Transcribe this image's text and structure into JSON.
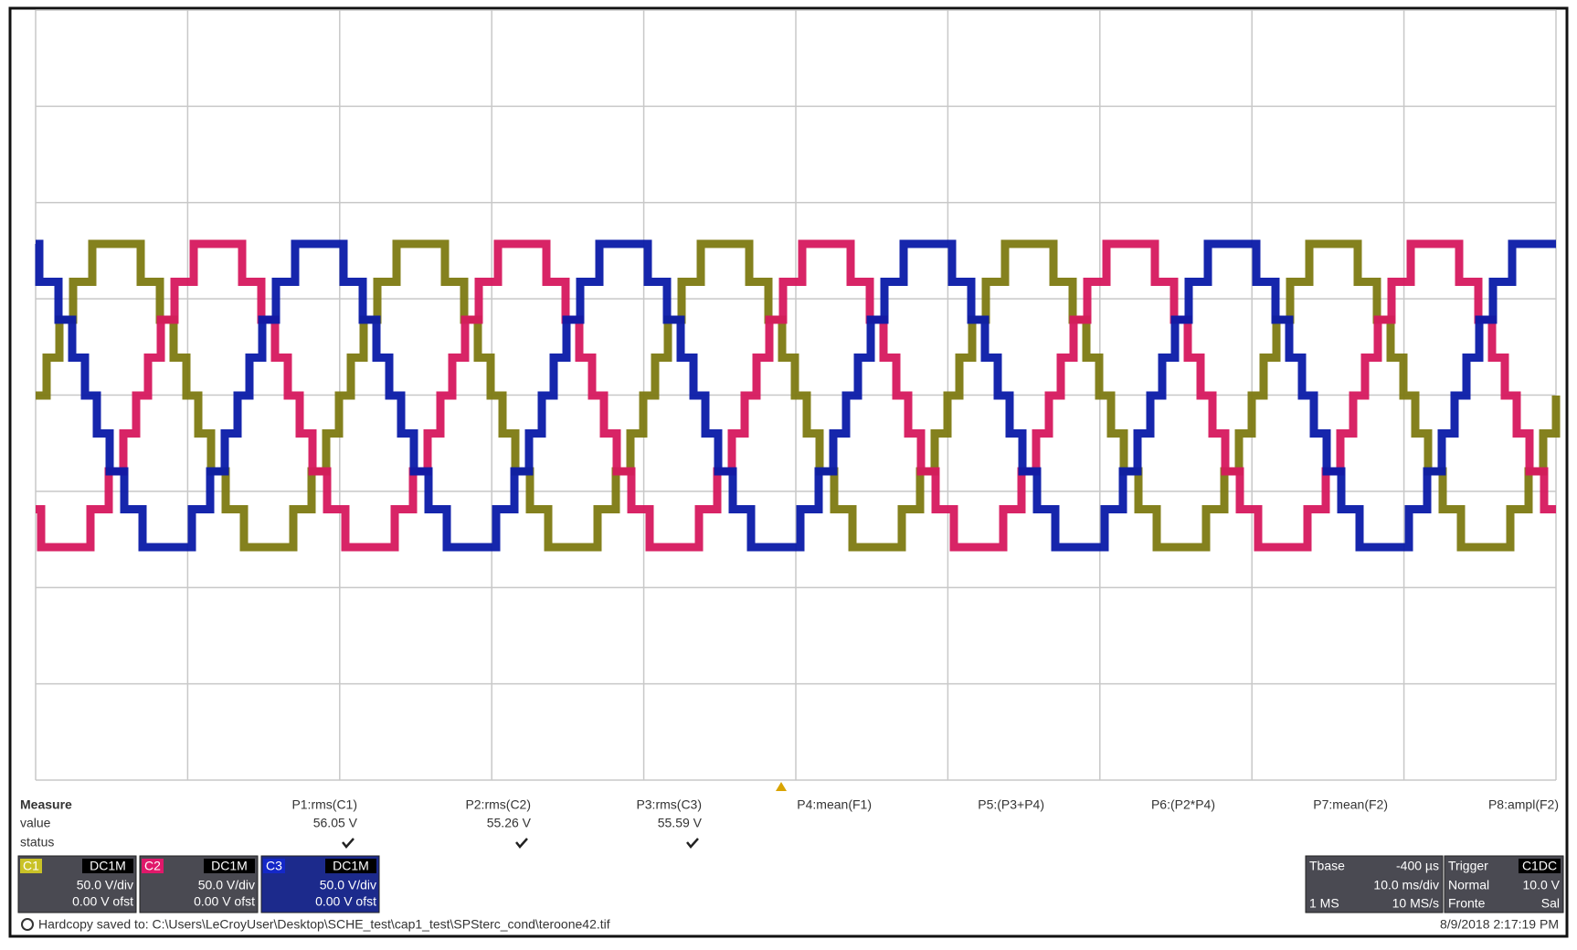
{
  "measure": {
    "title": "Measure",
    "row_labels": [
      "value",
      "status"
    ],
    "params": [
      {
        "name": "P1:rms(C1)",
        "value": "56.05 V"
      },
      {
        "name": "P2:rms(C2)",
        "value": "55.26 V"
      },
      {
        "name": "P3:rms(C3)",
        "value": "55.59 V"
      },
      {
        "name": "P4:mean(F1)"
      },
      {
        "name": "P5:(P3+P4)"
      },
      {
        "name": "P6:(P2*P4)"
      },
      {
        "name": "P7:mean(F2)"
      },
      {
        "name": "P8:ampl(F2)"
      }
    ]
  },
  "channels": [
    {
      "name": "C1",
      "coupling": "DC1M",
      "scale": "50.0 V/div",
      "offset": "0.00 V ofst"
    },
    {
      "name": "C2",
      "coupling": "DC1M",
      "scale": "50.0 V/div",
      "offset": "0.00 V ofst"
    },
    {
      "name": "C3",
      "coupling": "DC1M",
      "scale": "50.0 V/div",
      "offset": "0.00 V ofst"
    }
  ],
  "timebase": {
    "title": "Tbase",
    "delay": "-400 µs",
    "scale": "10.0 ms/div",
    "samples": "1 MS",
    "rate": "10 MS/s"
  },
  "trigger": {
    "title": "Trigger",
    "source": "C1DC",
    "mode": "Normal",
    "level": "10.0 V",
    "type": "Fronte",
    "slope": "Sal"
  },
  "status": {
    "message": "Hardcopy saved to: C:\\Users\\LeCroyUser\\Desktop\\SCHE_test\\cap1_test\\SPSterc_cond\\teroone42.tif",
    "datetime": "8/9/2018 2:17:19 PM"
  }
}
